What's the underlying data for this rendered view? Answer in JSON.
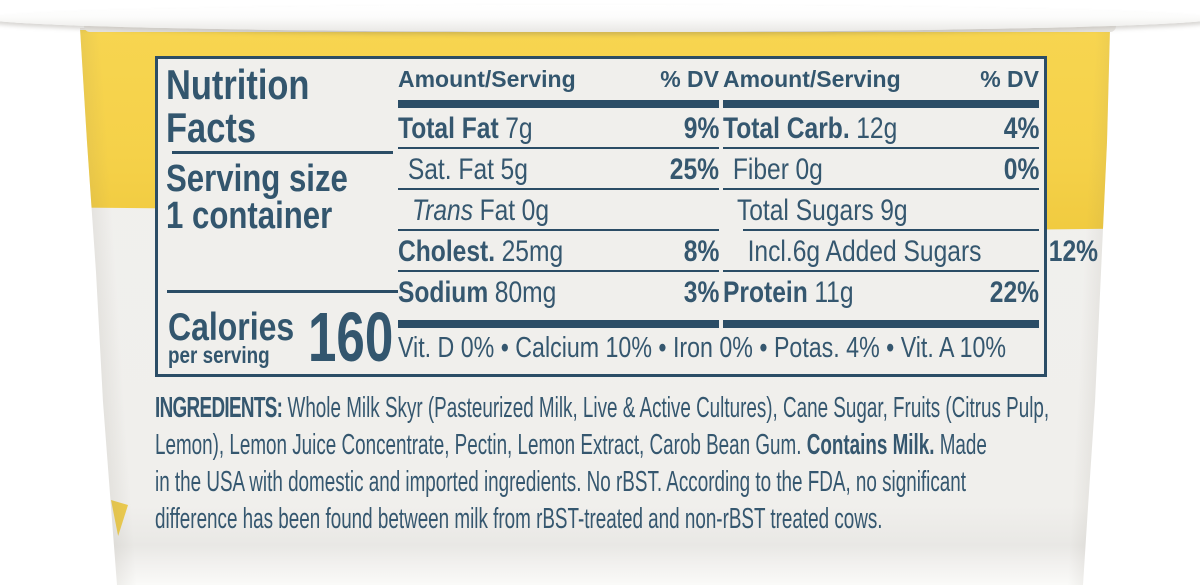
{
  "container": {
    "type_note": "side of a yogurt cup with printed nutrition label",
    "colors": {
      "label_yellow": "#f5d149",
      "text_blue": "#35576f",
      "rule_blue": "#2b4d66",
      "panel_bg": "#f0efec"
    }
  },
  "nutrition_facts": {
    "title_line1": "Nutrition",
    "title_line2": "Facts",
    "serving_size_label": "Serving size",
    "serving_size_value": "1 container",
    "calories_label": "Calories",
    "calories_sublabel": "per serving",
    "calories_value": "160",
    "header": {
      "amount": "Amount/Serving",
      "dv": "% DV"
    },
    "left_column": {
      "rows": [
        {
          "name": "Total Fat",
          "amount": "7g",
          "dv": "9%"
        },
        {
          "name": "Sat. Fat",
          "amount": "5g",
          "dv": "25%"
        },
        {
          "name_italic": "Trans",
          "name": "Fat",
          "amount": "0g",
          "dv": ""
        },
        {
          "name": "Cholest.",
          "amount": "25mg",
          "dv": "8%"
        },
        {
          "name": "Sodium",
          "amount": "80mg",
          "dv": "3%"
        }
      ]
    },
    "right_column": {
      "rows": [
        {
          "name": "Total Carb.",
          "amount": "12g",
          "dv": "4%"
        },
        {
          "name": "Fiber",
          "amount": "0g",
          "dv": "0%"
        },
        {
          "name": "Total Sugars",
          "amount": "9g",
          "dv": ""
        },
        {
          "name": "Incl.6g Added Sugars",
          "amount": "",
          "dv": "12%"
        },
        {
          "name": "Protein",
          "amount": "11g",
          "dv": "22%"
        }
      ]
    },
    "micronutrients": "Vit. D 0% • Calcium 10% • Iron 0% • Potas. 4% • Vit. A 10%"
  },
  "ingredients": {
    "label": "INGREDIENTS:",
    "line1": " Whole Milk Skyr (Pasteurized Milk, Live & Active Cultures), Cane Sugar, Fruits (Citrus Pulp,",
    "line2_pre": "Lemon), Lemon Juice Concentrate, Pectin, Lemon Extract, Carob Bean Gum. ",
    "line2_bold": "Contains Milk.",
    "line2_post": " Made",
    "line3": "in the USA with domestic and imported ingredients. No rBST. According to the FDA, no significant",
    "line4": "difference has been found between milk from rBST-treated and non-rBST treated cows."
  }
}
